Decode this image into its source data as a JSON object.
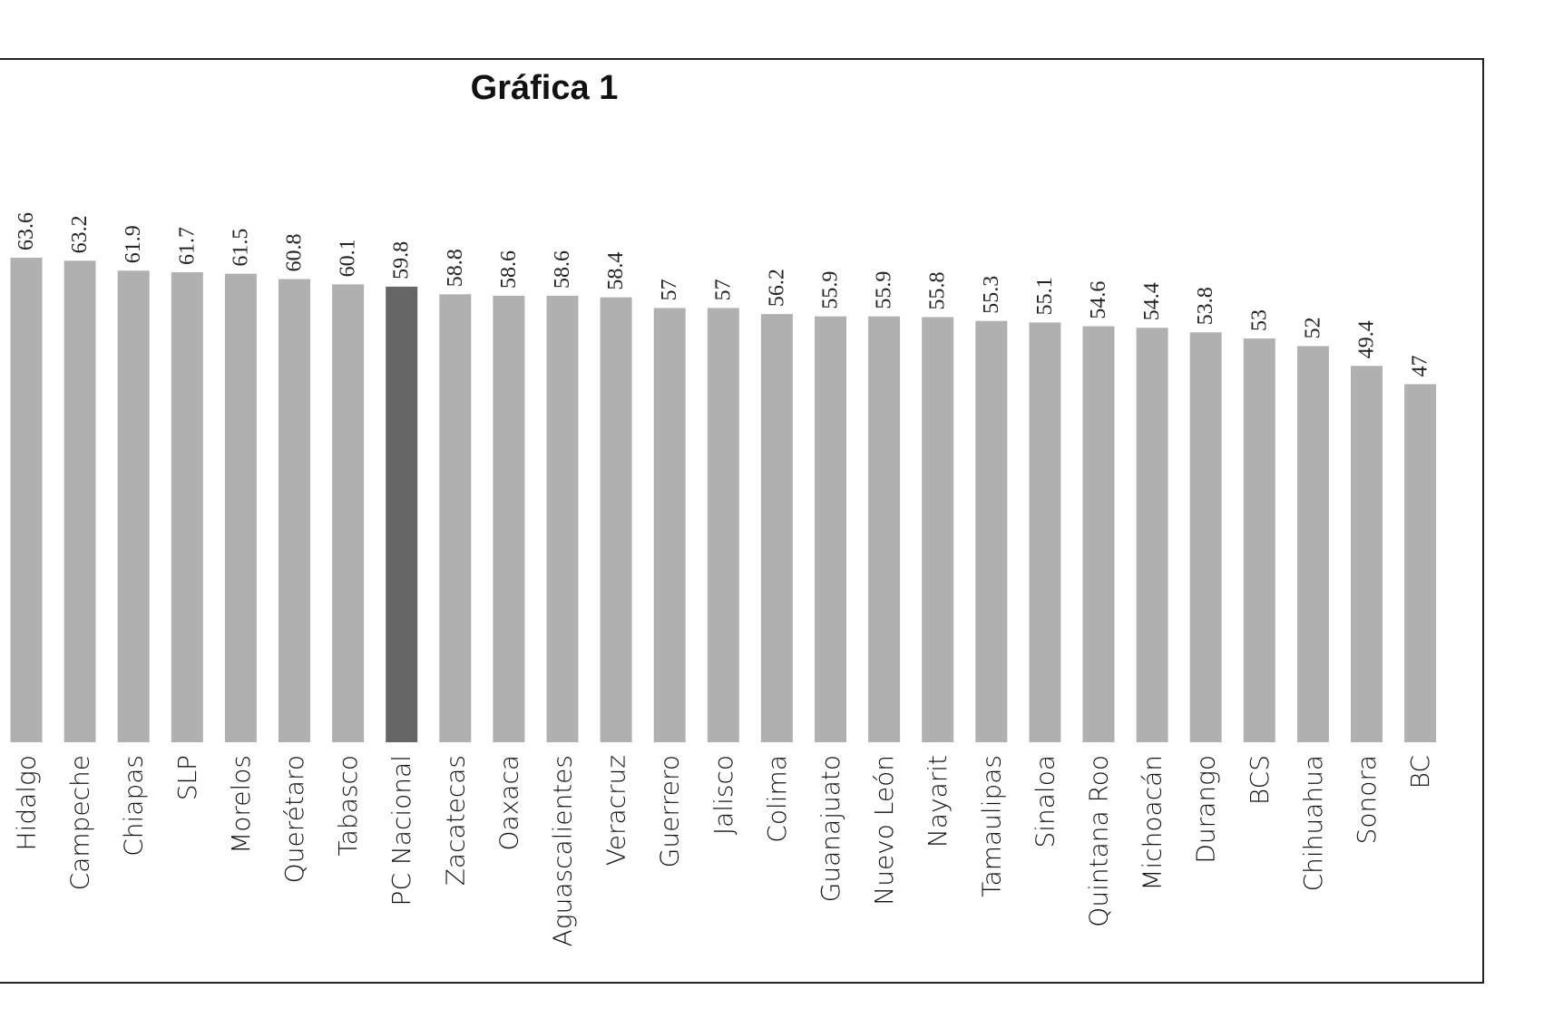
{
  "chart_data": {
    "type": "bar",
    "title": "Gráfica 1",
    "xlabel": "",
    "ylabel": "",
    "ylim": [
      0,
      70
    ],
    "grid": false,
    "categories": [
      "Hidalgo",
      "Campeche",
      "Chiapas",
      "SLP",
      "Morelos",
      "Querétaro",
      "Tabasco",
      "PC Nacional",
      "Zacatecas",
      "Oaxaca",
      "Aguascalientes",
      "Veracruz",
      "Guerrero",
      "Jalisco",
      "Colima",
      "Guanajuato",
      "Nuevo León",
      "Nayarit",
      "Tamaulipas",
      "Sinaloa",
      "Quintana Roo",
      "Michoacán",
      "Durango",
      "BCS",
      "Chihuahua",
      "Sonora",
      "BC"
    ],
    "values": [
      63.6,
      63.2,
      61.9,
      61.7,
      61.5,
      60.8,
      60.1,
      59.8,
      58.8,
      58.6,
      58.6,
      58.4,
      57,
      57,
      56.2,
      55.9,
      55.9,
      55.8,
      55.3,
      55.1,
      54.6,
      54.4,
      53.8,
      53,
      52,
      49.4,
      47
    ],
    "value_labels": [
      "63.6",
      "63.2",
      "61.9",
      "61.7",
      "61.5",
      "60.8",
      "60.1",
      "59.8",
      "58.8",
      "58.6",
      "58.6",
      "58.4",
      "57",
      "57",
      "56.2",
      "55.9",
      "55.9",
      "55.8",
      "55.3",
      "55.1",
      "54.6",
      "54.4",
      "53.8",
      "53",
      "52",
      "49.4",
      "47"
    ],
    "highlight_category": "PC Nacional",
    "colors": {
      "bar": "#b0b0b0",
      "highlight": "#666666",
      "frame": "#222222"
    }
  }
}
